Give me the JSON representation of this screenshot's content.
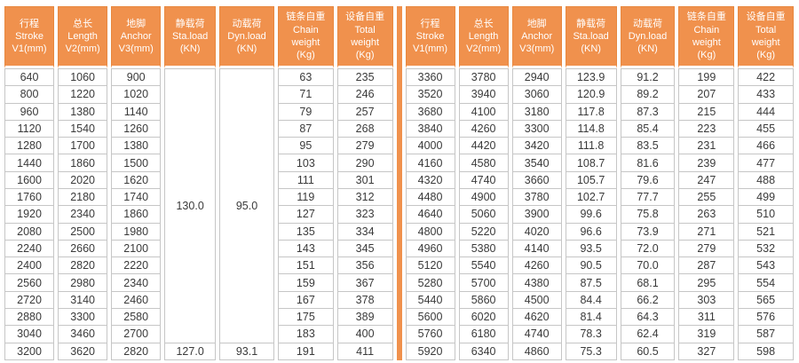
{
  "colors": {
    "accent": "#F0914D",
    "accent_border": "#E8883F",
    "cell_border": "#C6C6C6",
    "cell_text": "#3A3A3A",
    "header_text": "#FFFFFF",
    "background": "#FFFFFF"
  },
  "header": {
    "columns": [
      {
        "lines": [
          "行程",
          "Stroke",
          "V1(mm)"
        ]
      },
      {
        "lines": [
          "总长",
          "Length",
          "V2(mm)"
        ]
      },
      {
        "lines": [
          "地脚",
          "Anchor",
          "V3(mm)"
        ]
      },
      {
        "lines": [
          "静载荷",
          "Sta.load",
          "(KN)"
        ]
      },
      {
        "lines": [
          "动载荷",
          "Dyn.load",
          "(KN)"
        ]
      },
      {
        "lines": [
          "链条自重",
          "Chain",
          "weight",
          "(Kg)"
        ]
      },
      {
        "lines": [
          "设备自重",
          "Total",
          "weight",
          "(Kg)"
        ]
      }
    ]
  },
  "tables": {
    "left": {
      "merges": [
        {
          "row": 0,
          "col": 3,
          "rowspan": 16
        },
        {
          "row": 0,
          "col": 4,
          "rowspan": 16
        }
      ],
      "rows": [
        [
          "640",
          "1060",
          "900",
          "130.0",
          "95.0",
          "63",
          "235"
        ],
        [
          "800",
          "1220",
          "1020",
          null,
          null,
          "71",
          "246"
        ],
        [
          "960",
          "1380",
          "1140",
          null,
          null,
          "79",
          "257"
        ],
        [
          "1120",
          "1540",
          "1260",
          null,
          null,
          "87",
          "268"
        ],
        [
          "1280",
          "1700",
          "1380",
          null,
          null,
          "95",
          "279"
        ],
        [
          "1440",
          "1860",
          "1500",
          null,
          null,
          "103",
          "290"
        ],
        [
          "1600",
          "2020",
          "1620",
          null,
          null,
          "111",
          "301"
        ],
        [
          "1760",
          "2180",
          "1740",
          null,
          null,
          "119",
          "312"
        ],
        [
          "1920",
          "2340",
          "1860",
          null,
          null,
          "127",
          "323"
        ],
        [
          "2080",
          "2500",
          "1980",
          null,
          null,
          "135",
          "334"
        ],
        [
          "2240",
          "2660",
          "2100",
          null,
          null,
          "143",
          "345"
        ],
        [
          "2400",
          "2820",
          "2220",
          null,
          null,
          "151",
          "356"
        ],
        [
          "2560",
          "2980",
          "2340",
          null,
          null,
          "159",
          "367"
        ],
        [
          "2720",
          "3140",
          "2460",
          null,
          null,
          "167",
          "378"
        ],
        [
          "2880",
          "3300",
          "2580",
          null,
          null,
          "175",
          "389"
        ],
        [
          "3040",
          "3460",
          "2700",
          null,
          null,
          "183",
          "400"
        ],
        [
          "3200",
          "3620",
          "2820",
          "127.0",
          "93.1",
          "191",
          "411"
        ]
      ]
    },
    "right": {
      "merges": [],
      "rows": [
        [
          "3360",
          "3780",
          "2940",
          "123.9",
          "91.2",
          "199",
          "422"
        ],
        [
          "3520",
          "3940",
          "3060",
          "120.9",
          "89.2",
          "207",
          "433"
        ],
        [
          "3680",
          "4100",
          "3180",
          "117.8",
          "87.3",
          "215",
          "444"
        ],
        [
          "3840",
          "4260",
          "3300",
          "114.8",
          "85.4",
          "223",
          "455"
        ],
        [
          "4000",
          "4420",
          "3420",
          "111.8",
          "83.5",
          "231",
          "466"
        ],
        [
          "4160",
          "4580",
          "3540",
          "108.7",
          "81.6",
          "239",
          "477"
        ],
        [
          "4320",
          "4740",
          "3660",
          "105.7",
          "79.6",
          "247",
          "488"
        ],
        [
          "4480",
          "4900",
          "3780",
          "102.7",
          "77.7",
          "255",
          "499"
        ],
        [
          "4640",
          "5060",
          "3900",
          "99.6",
          "75.8",
          "263",
          "510"
        ],
        [
          "4800",
          "5220",
          "4020",
          "96.6",
          "73.9",
          "271",
          "521"
        ],
        [
          "4960",
          "5380",
          "4140",
          "93.5",
          "72.0",
          "279",
          "532"
        ],
        [
          "5120",
          "5540",
          "4260",
          "90.5",
          "70.0",
          "287",
          "543"
        ],
        [
          "5280",
          "5700",
          "4380",
          "87.5",
          "68.1",
          "295",
          "554"
        ],
        [
          "5440",
          "5860",
          "4500",
          "84.4",
          "66.2",
          "303",
          "565"
        ],
        [
          "5600",
          "6020",
          "4620",
          "81.4",
          "64.3",
          "311",
          "576"
        ],
        [
          "5760",
          "6180",
          "4740",
          "78.3",
          "62.4",
          "319",
          "587"
        ],
        [
          "5920",
          "6340",
          "4860",
          "75.3",
          "60.5",
          "327",
          "598"
        ]
      ]
    }
  }
}
